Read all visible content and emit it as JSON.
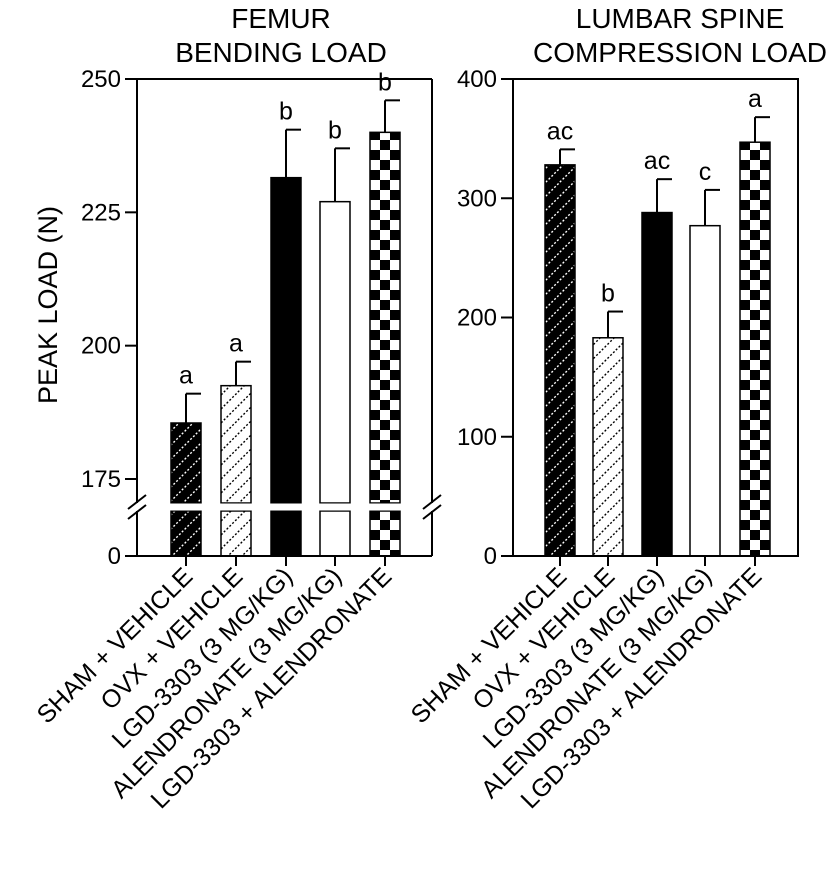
{
  "chart_data": [
    {
      "type": "bar",
      "title": [
        "FEMUR",
        "BENDING LOAD"
      ],
      "ylabel": "PEAK LOAD (N)",
      "xlabel": "",
      "categories": [
        "SHAM + VEHICLE",
        "OVX + VEHICLE",
        "LGD-3303 (3 MG/KG)",
        "ALENDRONATE (3 MG/KG)",
        "LGD-3303 + ALENDRONATE"
      ],
      "values": [
        185.5,
        192.5,
        231.5,
        227,
        240
      ],
      "errors": [
        5.5,
        4.5,
        9,
        10,
        6
      ],
      "letters": [
        "a",
        "a",
        "b",
        "b",
        "b"
      ],
      "patterns": [
        "black-hatch",
        "white-hatch",
        "solid-black",
        "solid-white",
        "checker"
      ],
      "yticks": [
        0,
        175,
        200,
        225,
        250
      ],
      "ylim": [
        0,
        250
      ],
      "axis_break": [
        0,
        170
      ],
      "grid": false
    },
    {
      "type": "bar",
      "title": [
        "LUMBAR SPINE",
        "COMPRESSION LOAD"
      ],
      "ylabel": "",
      "xlabel": "",
      "categories": [
        "SHAM + VEHICLE",
        "OVX + VEHICLE",
        "LGD-3303 (3 MG/KG)",
        "ALENDRONATE (3 MG/KG)",
        "LGD-3303 + ALENDRONATE"
      ],
      "values": [
        328,
        183,
        288,
        277,
        347
      ],
      "errors": [
        13,
        22,
        28,
        30,
        21
      ],
      "letters": [
        "ac",
        "b",
        "ac",
        "c",
        "a"
      ],
      "patterns": [
        "black-hatch",
        "white-hatch",
        "solid-black",
        "solid-white",
        "checker"
      ],
      "yticks": [
        0,
        100,
        200,
        300,
        400
      ],
      "ylim": [
        0,
        400
      ],
      "grid": false
    }
  ]
}
